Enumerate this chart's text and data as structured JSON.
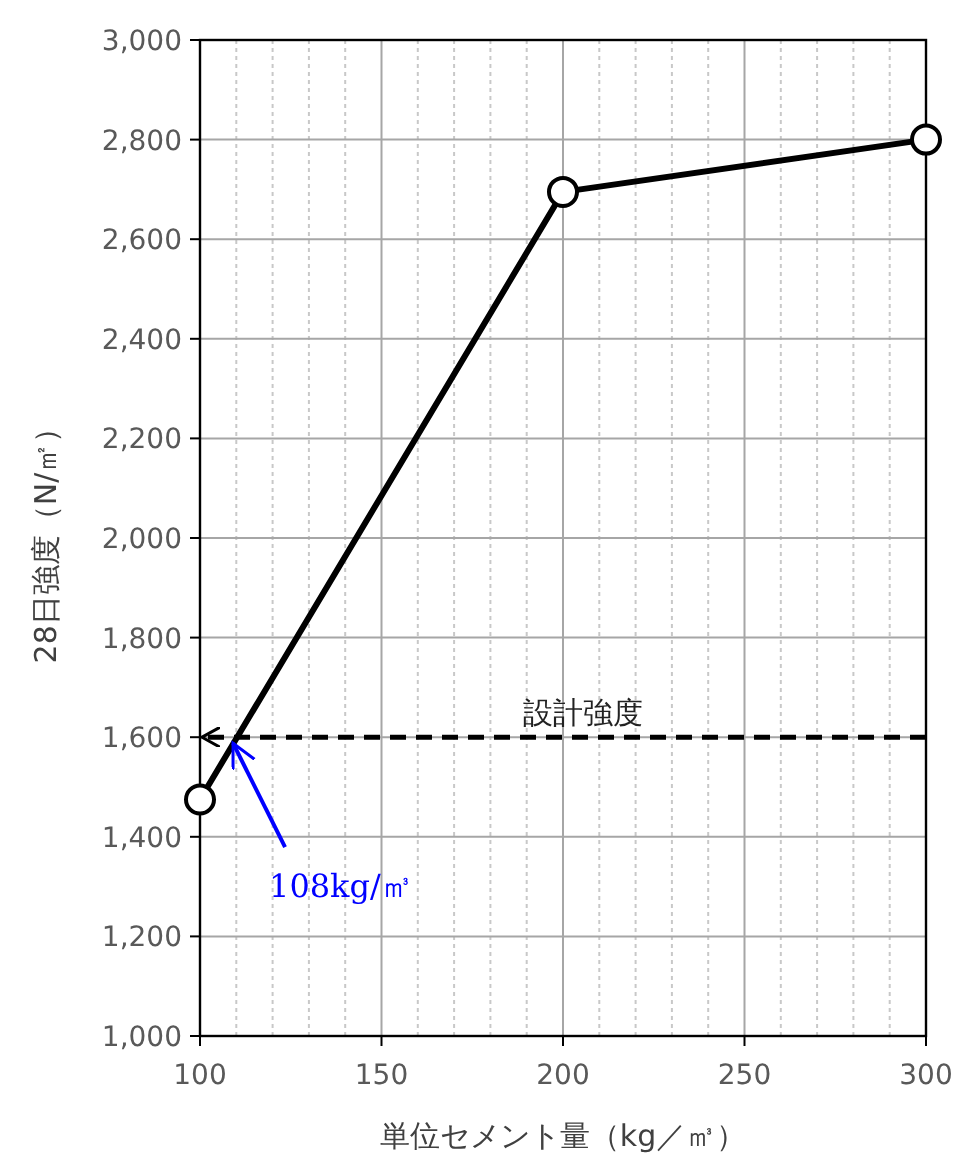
{
  "chart_data": {
    "type": "line",
    "xlabel": "単位セメント量（kg／㎥）",
    "ylabel": "28日強度（N/㎡）",
    "x": [
      100,
      200,
      300
    ],
    "series": [
      {
        "color": "#000000",
        "values": [
          1475,
          2695,
          2800
        ]
      }
    ],
    "xlim": [
      100,
      300
    ],
    "xticks": [
      100,
      {
        "value": 110,
        "label": null
      },
      {
        "value": 120,
        "label": null
      },
      {
        "value": 130,
        "label": null
      },
      {
        "value": 140,
        "label": null
      },
      150,
      {
        "value": 160,
        "label": null
      },
      {
        "value": 170,
        "label": null
      },
      {
        "value": 180,
        "label": null
      },
      {
        "value": 190,
        "label": null
      },
      200,
      {
        "value": 210,
        "label": null
      },
      {
        "value": 220,
        "label": null
      },
      {
        "value": 230,
        "label": null
      },
      {
        "value": 240,
        "label": null
      },
      250,
      {
        "value": 260,
        "label": null
      },
      {
        "value": 270,
        "label": null
      },
      {
        "value": 280,
        "label": null
      },
      {
        "value": 290,
        "label": null
      },
      300
    ],
    "ylim": [
      1000,
      3000
    ],
    "yticks": [
      {
        "value": 1000,
        "label": "1,000"
      },
      {
        "value": 1200,
        "label": "1,200"
      },
      {
        "value": 1400,
        "label": "1,400"
      },
      {
        "value": 1600,
        "label": "1,600"
      },
      {
        "value": 1800,
        "label": "1,800"
      },
      {
        "value": 2000,
        "label": "2,000"
      },
      {
        "value": 2200,
        "label": "2,200"
      },
      {
        "value": 2400,
        "label": "2,400"
      },
      {
        "value": 2600,
        "label": "2,600"
      },
      {
        "value": 2800,
        "label": "2,800"
      },
      {
        "value": 3000,
        "label": "3,000"
      }
    ],
    "grid": true,
    "marker": "circle",
    "line_style": "solid",
    "ref_lines": [
      {
        "axis": "y",
        "value": 1600,
        "label": "設計強度",
        "color": "#000000",
        "line_style": "dashed"
      }
    ],
    "annotations": [
      {
        "text": "108kg/㎥",
        "x": 108,
        "y": 1600
      }
    ]
  }
}
